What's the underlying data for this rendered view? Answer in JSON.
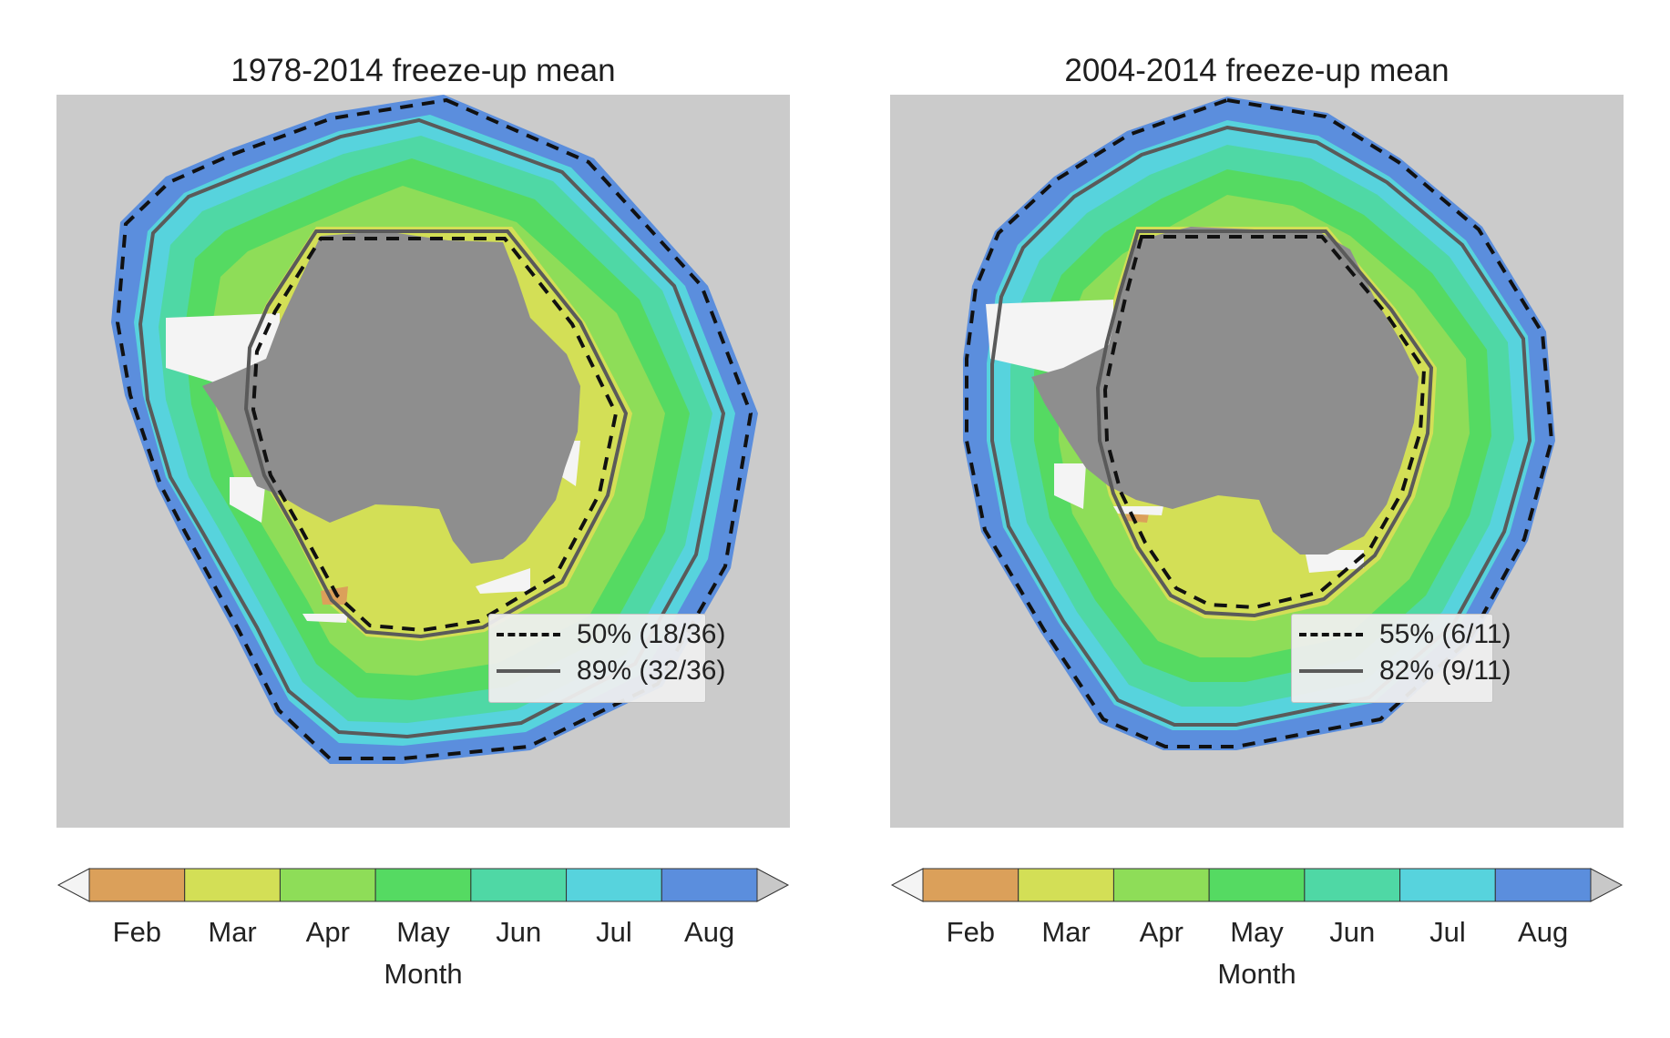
{
  "panels": [
    {
      "title": "1978-2014 freeze-up mean",
      "legend": [
        {
          "style": "dashed",
          "label": "50% (18/36)"
        },
        {
          "style": "solid",
          "label": "89% (32/36)"
        }
      ]
    },
    {
      "title": "2004-2014 freeze-up mean",
      "legend": [
        {
          "style": "dashed",
          "label": "55% (6/11)"
        },
        {
          "style": "solid",
          "label": "82% (9/11)"
        }
      ]
    }
  ],
  "colorbar": {
    "label": "Month",
    "ticks": [
      "Feb",
      "Mar",
      "Apr",
      "May",
      "Jun",
      "Jul",
      "Aug"
    ],
    "colors": [
      "#dba05a",
      "#d3df56",
      "#8edd58",
      "#55da62",
      "#4fd8a5",
      "#57d3dd",
      "#5b8edd"
    ],
    "extend_low_color": "#f4f4f4",
    "extend_high_color": "#c8c8c8"
  },
  "map_colors": {
    "ocean": "#cbcbcb",
    "continent": "#8e8e8e",
    "ice_shelf": "#f4f4f4"
  }
}
